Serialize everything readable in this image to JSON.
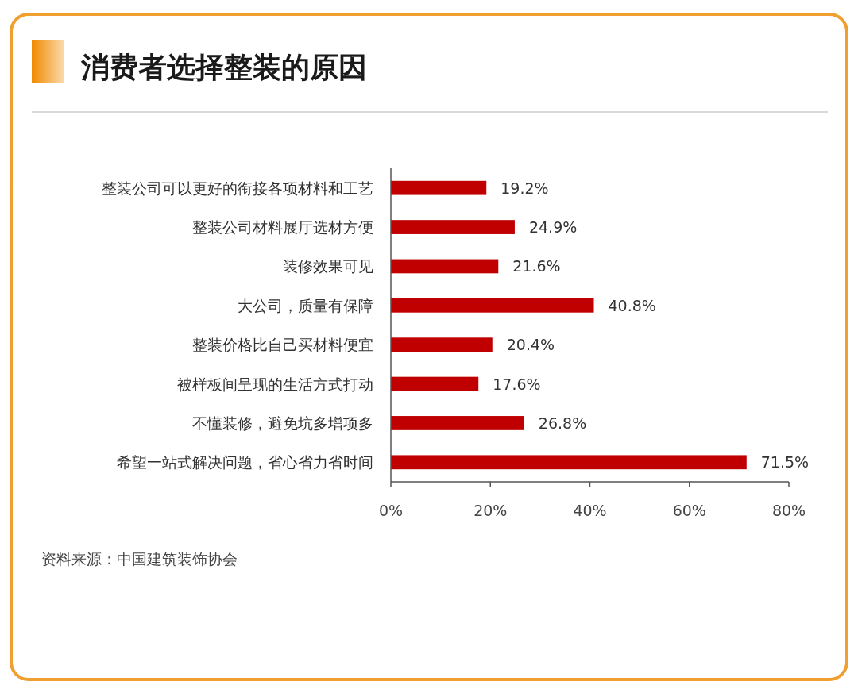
{
  "chart_data": {
    "type": "bar",
    "orientation": "horizontal",
    "title": "消费者选择整装的原因",
    "categories": [
      "整装公司可以更好的衔接各项材料和工艺",
      "整装公司材料展厅选材方便",
      "装修效果可见",
      "大公司，质量有保障",
      "整装价格比自己买材料便宜",
      "被样板间呈现的生活方式打动",
      "不懂装修，避免坑多增项多",
      "希望一站式解决问题，省心省力省时间"
    ],
    "values": [
      19.2,
      24.9,
      21.6,
      40.8,
      20.4,
      17.6,
      26.8,
      71.5
    ],
    "value_labels": [
      "19.2%",
      "24.9%",
      "21.6%",
      "40.8%",
      "20.4%",
      "17.6%",
      "26.8%",
      "71.5%"
    ],
    "color": "#c00000",
    "xlim": [
      0,
      80
    ],
    "xticks": [
      {
        "value": 0,
        "label": "0%"
      },
      {
        "value": 20,
        "label": "20%"
      },
      {
        "value": 40,
        "label": "40%"
      },
      {
        "value": 60,
        "label": "60%"
      },
      {
        "value": 80,
        "label": "80%"
      }
    ],
    "grid": false,
    "annotations": [
      "资料来源：中国建筑装饰协会"
    ]
  }
}
